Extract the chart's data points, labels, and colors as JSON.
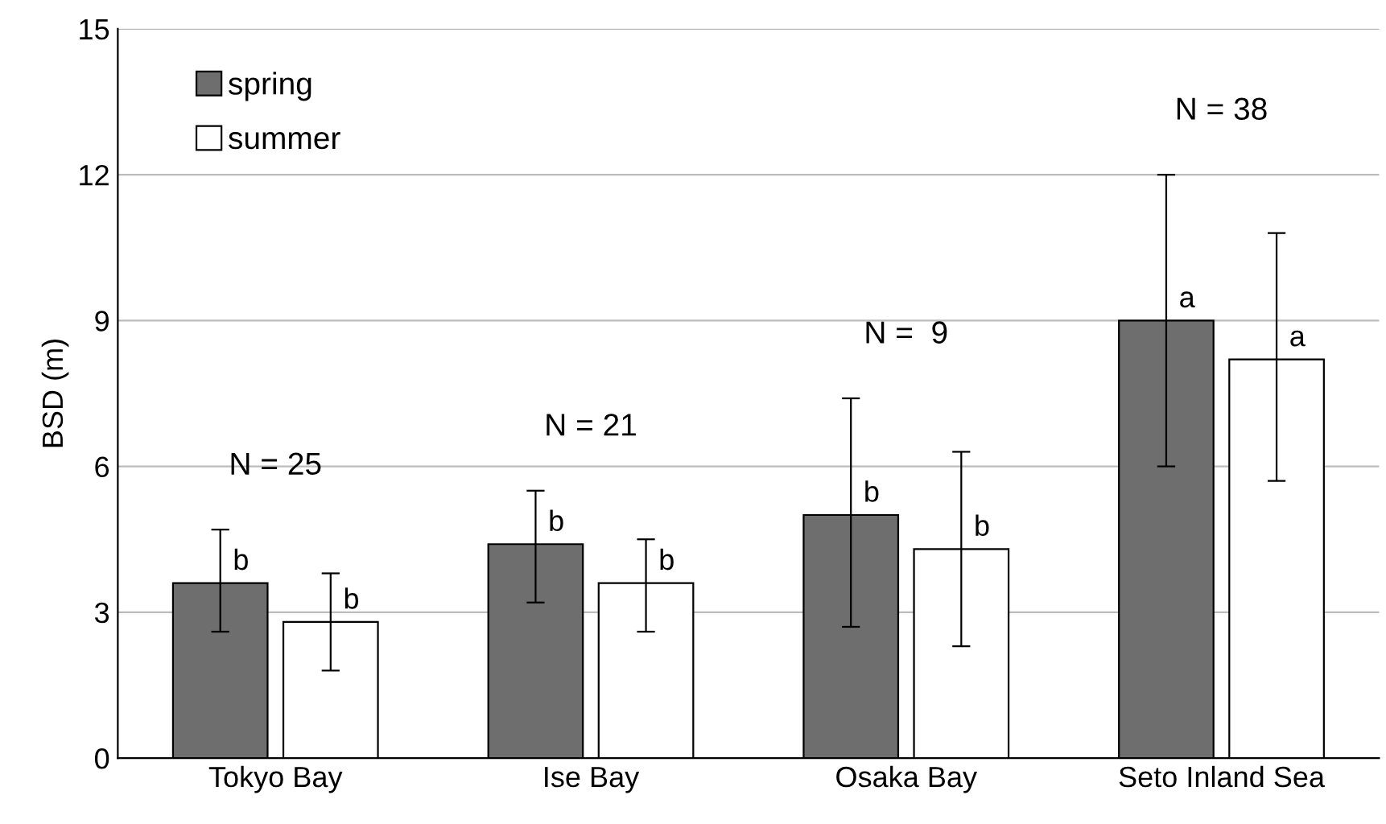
{
  "chart_data": {
    "type": "bar",
    "ylabel": "BSD (m)",
    "categories": [
      "Tokyo Bay",
      "Ise Bay",
      "Osaka Bay",
      "Seto Inland Sea"
    ],
    "series": [
      {
        "name": "spring",
        "color": "#6e6e6e",
        "values": [
          3.6,
          4.4,
          5.0,
          9.0
        ],
        "errors": [
          [
            2.6,
            4.7
          ],
          [
            3.2,
            5.5
          ],
          [
            2.7,
            7.4
          ],
          [
            6.0,
            12.0
          ]
        ],
        "value_labels": [
          "b",
          "b",
          "b",
          "a"
        ]
      },
      {
        "name": "summer",
        "color": "#ffffff",
        "values": [
          2.8,
          3.6,
          4.3,
          8.2
        ],
        "errors": [
          [
            1.8,
            3.8
          ],
          [
            2.6,
            4.5
          ],
          [
            2.3,
            6.3
          ],
          [
            5.7,
            10.8
          ]
        ],
        "value_labels": [
          "b",
          "b",
          "b",
          "a"
        ]
      }
    ],
    "annotations": [
      "N = 25",
      "N = 21",
      "N =  9",
      "N = 38"
    ],
    "ylim": [
      0,
      15
    ],
    "yticks": [
      0,
      3,
      6,
      9,
      12,
      15
    ],
    "grid": "y",
    "legend": "top left"
  }
}
